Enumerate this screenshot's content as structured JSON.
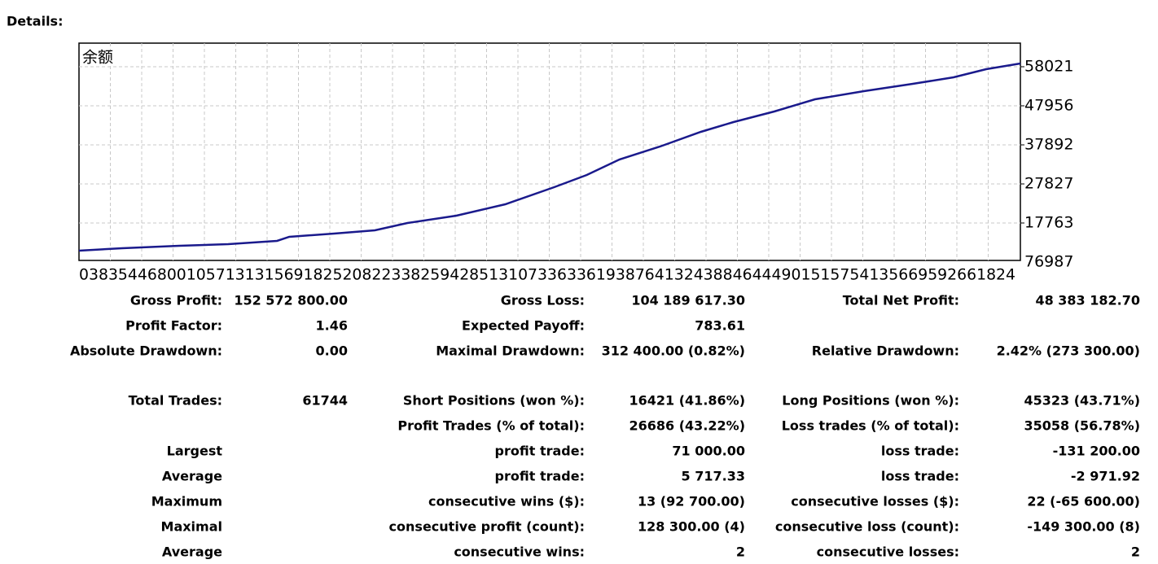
{
  "title": "Details:",
  "chart_data": {
    "type": "line",
    "label": "余额",
    "x": [
      0,
      53,
      123,
      183,
      243,
      258,
      313,
      363,
      403,
      463,
      523,
      583,
      623,
      663,
      713,
      763,
      803,
      853,
      903,
      963,
      1023,
      1073,
      1113,
      1155
    ],
    "xlim": [
      0,
      1155
    ],
    "series": [
      {
        "color": "#1a1a8c",
        "values": [
          10636,
          11265,
          11894,
          12313,
          13152,
          14200,
          15040,
          15878,
          17764,
          19651,
          22586,
          26990,
          30136,
          34118,
          37474,
          41247,
          43765,
          46489,
          49634,
          51731,
          53618,
          55295,
          57392,
          58860
        ]
      }
    ],
    "ylim": [
      8119,
      64101
    ],
    "yticks": [
      17763,
      27827,
      37892,
      47956,
      58021
    ],
    "y_bottom_label": "76987",
    "x_axis_text": "038354468001057131315691825208223382594285131073363361938764132438846444901515754135669592661824",
    "grid": true
  },
  "table": {
    "rows": [
      [
        "Gross Profit:",
        "152 572 800.00",
        "Gross Loss:",
        "104 189 617.30",
        "Total Net Profit:",
        "48 383 182.70"
      ],
      [
        "Profit Factor:",
        "1.46",
        "Expected Payoff:",
        "783.61",
        null,
        null
      ],
      [
        "Absolute Drawdown:",
        "0.00",
        "Maximal Drawdown:",
        "312 400.00 (0.82%)",
        "Relative Drawdown:",
        "2.42% (273 300.00)"
      ],
      [
        "Total Trades:",
        "61744",
        "Short Positions (won %):",
        "16421 (41.86%)",
        "Long Positions (won %):",
        "45323 (43.71%)"
      ],
      [
        null,
        null,
        "Profit Trades (% of total):",
        "26686 (43.22%)",
        "Loss trades (% of total):",
        "35058 (56.78%)"
      ],
      [
        "Largest",
        null,
        "profit trade:",
        "71 000.00",
        "loss trade:",
        "-131 200.00"
      ],
      [
        "Average",
        null,
        "profit trade:",
        "5 717.33",
        "loss trade:",
        "-2 971.92"
      ],
      [
        "Maximum",
        null,
        "consecutive wins ($):",
        "13 (92 700.00)",
        "consecutive losses ($):",
        "22 (-65 600.00)"
      ],
      [
        "Maximal",
        null,
        "consecutive profit (count):",
        "128 300.00 (4)",
        "consecutive loss (count):",
        "-149 300.00 (8)"
      ],
      [
        "Average",
        null,
        "consecutive wins:",
        "2",
        "consecutive losses:",
        "2"
      ]
    ]
  }
}
